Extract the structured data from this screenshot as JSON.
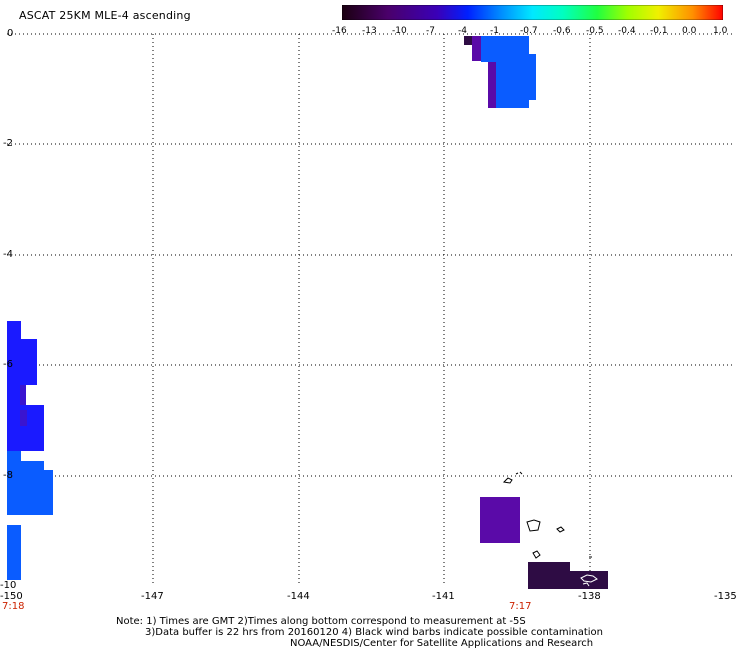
{
  "title": "ASCAT 25KM MLE-4 ascending",
  "colorbar": {
    "labels": [
      "-16",
      "-13",
      "-10",
      "-7",
      "-4",
      "-1",
      "-0.7",
      "-0.6",
      "-0.5",
      "-0.4",
      "-0.1",
      "0.0",
      "1.0"
    ],
    "colors": [
      "#1a0010",
      "#4a006a",
      "#3a00b8",
      "#0020ff",
      "#0090ff",
      "#00d8ff",
      "#00ffd0",
      "#20ff60",
      "#80ff00",
      "#e0ff00",
      "#ffc000",
      "#ff6000",
      "#ff0000"
    ]
  },
  "axes": {
    "y_labels": [
      "0",
      "-2",
      "-4",
      "-6",
      "-8",
      "-10"
    ],
    "x_labels": [
      "-150",
      "-147",
      "-144",
      "-141",
      "-138",
      "-135"
    ]
  },
  "times": {
    "left": "7:18",
    "right": "7:17"
  },
  "footer": {
    "line1": "Note: 1) Times are GMT 2)Times along bottom correspond to measurement at -5S",
    "line2": "3)Data buffer is 22 hrs from 20160120 4) Black wind barbs indicate possible contamination",
    "line3": "NOAA/NESDIS/Center for Satellite Applications and Research"
  },
  "swath_colors": {
    "blue": "#0a5cff",
    "bright_blue": "#1a1aff",
    "violet": "#5a0aa8",
    "dark_violet": "#2e0c44",
    "indigo": "#3a14d0"
  }
}
